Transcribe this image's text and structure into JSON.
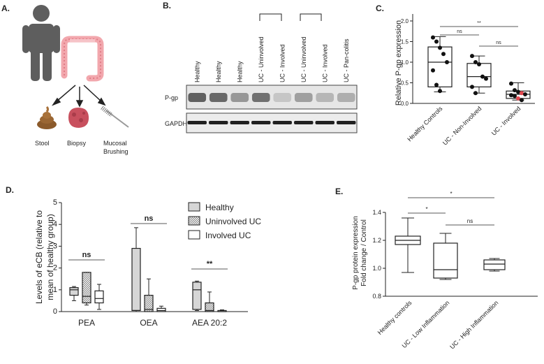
{
  "panels": {
    "a": "A.",
    "b": "B.",
    "c": "C.",
    "d": "D.",
    "e": "E."
  },
  "panel_a": {
    "labels": [
      "Stool",
      "Biopsy",
      "Mucosal",
      "Brushing"
    ],
    "icons": [
      "person-icon",
      "colon-icon",
      "stool-icon",
      "biopsy-tissue-icon",
      "brush-icon"
    ]
  },
  "panel_b": {
    "lanes": [
      "Healthy",
      "Healthy",
      "Healthy",
      "UC - Uninvolved",
      "UC - Involved",
      "UC - Uninvolved",
      "UC - Involved",
      "UC - Pan-colitis"
    ],
    "rows": [
      "P-gp",
      "GAPDH"
    ],
    "pgp_intensity": [
      0.85,
      0.8,
      0.5,
      0.75,
      0.2,
      0.45,
      0.3,
      0.35
    ],
    "gapdh_intensity": [
      0.9,
      0.9,
      0.9,
      0.9,
      0.9,
      0.9,
      0.9,
      0.9
    ]
  },
  "chart_data": [
    {
      "id": "C",
      "type": "box",
      "ylabel": "Relative P-gp expression",
      "ylim": [
        0,
        2.0
      ],
      "yticks": [
        "0.0",
        "0.5",
        "1.0",
        "1.5",
        "2.0"
      ],
      "categories": [
        "Healthy Controls",
        "UC - Non-Involved",
        "UC - Involved"
      ],
      "boxes": [
        {
          "min": 0.28,
          "q1": 0.4,
          "median": 1.0,
          "q3": 1.37,
          "max": 1.62
        },
        {
          "min": 0.25,
          "q1": 0.4,
          "median": 0.65,
          "q3": 0.97,
          "max": 1.15
        },
        {
          "min": 0.08,
          "q1": 0.12,
          "median": 0.22,
          "q3": 0.3,
          "max": 0.5
        }
      ],
      "points": [
        [
          1.6,
          1.5,
          1.35,
          1.2,
          1.0,
          0.8,
          0.45,
          0.3
        ],
        [
          1.15,
          1.0,
          0.95,
          0.65,
          0.6,
          0.4,
          0.25
        ],
        [
          0.48,
          0.32,
          0.28,
          0.25,
          0.22,
          0.2,
          0.18,
          0.12,
          0.08
        ]
      ],
      "highlight_points_ug3": [
        0.25,
        0.12
      ],
      "annotations": [
        {
          "from": 0,
          "to": 1,
          "text": "ns"
        },
        {
          "from": 0,
          "to": 2,
          "text": "**"
        },
        {
          "from": 1,
          "to": 2,
          "text": "ns"
        }
      ]
    },
    {
      "id": "D",
      "type": "bar",
      "ylabel": "Levels of eCB (relative to mean of healthy group)",
      "ylim": [
        0,
        5
      ],
      "yticks": [
        "0",
        "1",
        "2",
        "3",
        "4",
        "5"
      ],
      "categories": [
        "PEA",
        "OEA",
        "AEA 20:2"
      ],
      "series": [
        {
          "name": "Healthy",
          "fill": "#d6d6d6",
          "boxes": [
            {
              "min": 0.5,
              "q1": 0.75,
              "median": 1.0,
              "q3": 1.1,
              "max": 1.15
            },
            {
              "min": 0.0,
              "q1": 0.05,
              "median": 0.05,
              "q3": 2.9,
              "max": 3.85
            },
            {
              "min": 0.05,
              "q1": 0.1,
              "median": 1.0,
              "q3": 1.35,
              "max": 1.4
            }
          ]
        },
        {
          "name": "Uninvolved UC",
          "fill": "pattern",
          "boxes": [
            {
              "min": 0.3,
              "q1": 0.4,
              "median": 0.7,
              "q3": 1.8,
              "max": 1.8
            },
            {
              "min": 0.0,
              "q1": 0.0,
              "median": 0.1,
              "q3": 0.75,
              "max": 1.5
            },
            {
              "min": 0.0,
              "q1": 0.0,
              "median": 0.05,
              "q3": 0.4,
              "max": 0.9
            }
          ]
        },
        {
          "name": "Involved UC",
          "fill": "#ffffff",
          "boxes": [
            {
              "min": 0.1,
              "q1": 0.4,
              "median": 0.6,
              "q3": 0.95,
              "max": 1.25
            },
            {
              "min": 0.0,
              "q1": 0.0,
              "median": 0.05,
              "q3": 0.15,
              "max": 0.25
            },
            {
              "min": 0.0,
              "q1": 0.0,
              "median": 0.0,
              "q3": 0.05,
              "max": 0.08
            }
          ]
        }
      ],
      "annotations": [
        {
          "category": 0,
          "text": "ns"
        },
        {
          "category": 1,
          "text": "ns"
        },
        {
          "category": 2,
          "text": "**"
        }
      ]
    },
    {
      "id": "E",
      "type": "box",
      "ylabel": "P-gp protein expression Fold change / Control",
      "ylabel_lines": [
        "P-gp protein expression",
        "Fold change / Control"
      ],
      "ylim": [
        0.8,
        1.4
      ],
      "yticks": [
        "0.8",
        "1.0",
        "1.2",
        "1.4"
      ],
      "categories": [
        "Healthy controls",
        "UC - Low Inflammation",
        "UC - High Inflammation"
      ],
      "boxes": [
        {
          "min": 0.97,
          "q1": 1.17,
          "median": 1.2,
          "q3": 1.23,
          "max": 1.36
        },
        {
          "min": 0.92,
          "q1": 0.93,
          "median": 0.99,
          "q3": 1.18,
          "max": 1.25
        },
        {
          "min": 0.98,
          "q1": 0.99,
          "median": 1.03,
          "q3": 1.06,
          "max": 1.07
        }
      ],
      "annotations": [
        {
          "from": 0,
          "to": 2,
          "text": "*"
        },
        {
          "from": 0,
          "to": 1,
          "text": "*"
        },
        {
          "from": 1,
          "to": 2,
          "text": "ns"
        }
      ]
    }
  ]
}
